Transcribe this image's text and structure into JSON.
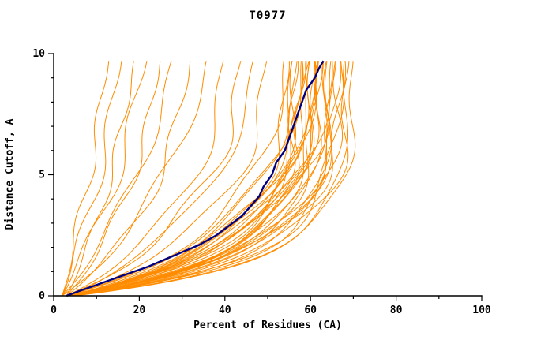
{
  "title": "T0977",
  "chart_data": {
    "type": "line",
    "title": "T0977",
    "xlabel": "Percent of Residues (CA)",
    "ylabel": "Distance Cutoff, A",
    "xlim": [
      0,
      100
    ],
    "ylim": [
      0,
      10
    ],
    "x_major_ticks": [
      0,
      20,
      40,
      60,
      80,
      100
    ],
    "x_minor_ticks": [
      10,
      30,
      50,
      70,
      90
    ],
    "y_major_ticks": [
      0,
      5,
      10
    ],
    "y_minor_ticks": [
      1,
      2,
      3,
      4,
      6,
      7,
      8,
      9
    ],
    "grid": false,
    "legend": "none",
    "background_color": "#ffffff",
    "axis_color": "#000000",
    "series": [
      {
        "name": "predicted-model-curves",
        "color": "#ff8c00",
        "count": 46,
        "cutoff_max": 9.7,
        "note": "Ensemble of model curves, percent of residues vs distance cutoff; each curve estimated as [start_percent, percent_at_10A, rise_rate, wiggle_amp, wiggle_phase, wiggle_freq]",
        "curves": [
          [
            2,
            13,
            0.05,
            1.2,
            0.5,
            1.4
          ],
          [
            2,
            16,
            0.08,
            1.5,
            2.0,
            1.2
          ],
          [
            3,
            19,
            0.12,
            1.0,
            1.0,
            1.6
          ],
          [
            2,
            22,
            0.1,
            1.8,
            2.6,
            1.1
          ],
          [
            3,
            25,
            0.18,
            1.2,
            0.2,
            1.5
          ],
          [
            2,
            28,
            0.14,
            1.6,
            1.3,
            1.0
          ],
          [
            3,
            32,
            0.22,
            1.4,
            2.2,
            1.3
          ],
          [
            2,
            36,
            0.18,
            1.8,
            0.7,
            0.9
          ],
          [
            3,
            40,
            0.28,
            2.0,
            1.9,
            1.0
          ],
          [
            3,
            44,
            0.3,
            2.2,
            0.4,
            1.2
          ],
          [
            4,
            47,
            0.26,
            1.8,
            2.8,
            0.8
          ],
          [
            3,
            50,
            0.34,
            2.0,
            1.5,
            1.1
          ],
          [
            3,
            54,
            0.36,
            2.0,
            0.3,
            1.0
          ],
          [
            4,
            55,
            0.45,
            1.5,
            1.2,
            1.3
          ],
          [
            3,
            56,
            0.5,
            2.5,
            2.1,
            0.9
          ],
          [
            4,
            56,
            0.38,
            1.8,
            0.6,
            1.1
          ],
          [
            3,
            57,
            0.55,
            2.2,
            1.8,
            1.2
          ],
          [
            4,
            57,
            0.42,
            1.2,
            2.5,
            1.0
          ],
          [
            5,
            58,
            0.6,
            1.6,
            0.9,
            1.4
          ],
          [
            3,
            58,
            0.35,
            2.4,
            1.6,
            0.8
          ],
          [
            4,
            58,
            0.48,
            1.4,
            2.9,
            1.2
          ],
          [
            3,
            59,
            0.52,
            2.0,
            0.2,
            1.0
          ],
          [
            5,
            59,
            0.4,
            1.7,
            1.4,
            1.3
          ],
          [
            4,
            60,
            0.58,
            2.3,
            2.3,
            0.9
          ],
          [
            3,
            60,
            0.44,
            1.3,
            0.8,
            1.1
          ],
          [
            5,
            60,
            0.36,
            2.6,
            1.9,
            1.0
          ],
          [
            4,
            61,
            0.62,
            1.5,
            2.7,
            1.2
          ],
          [
            3,
            61,
            0.46,
            2.1,
            0.5,
            0.9
          ],
          [
            5,
            61,
            0.54,
            1.2,
            1.7,
            1.4
          ],
          [
            4,
            62,
            0.4,
            2.4,
            2.0,
            1.0
          ],
          [
            3,
            62,
            0.65,
            1.6,
            1.1,
            1.1
          ],
          [
            5,
            62,
            0.5,
            1.9,
            0.0,
            1.2
          ],
          [
            4,
            63,
            0.57,
            2.2,
            2.4,
            0.8
          ],
          [
            3,
            63,
            0.43,
            1.4,
            1.0,
            1.3
          ],
          [
            5,
            64,
            0.68,
            1.8,
            1.6,
            1.0
          ],
          [
            4,
            64,
            0.47,
            2.5,
            0.4,
            1.1
          ],
          [
            3,
            65,
            0.6,
            1.3,
            2.2,
            1.2
          ],
          [
            5,
            65,
            0.38,
            2.0,
            1.2,
            0.9
          ],
          [
            4,
            66,
            0.55,
            1.7,
            2.8,
            1.0
          ],
          [
            3,
            66,
            0.7,
            2.3,
            0.6,
            1.1
          ],
          [
            5,
            67,
            0.48,
            1.5,
            1.8,
            1.3
          ],
          [
            4,
            67,
            0.63,
            2.1,
            0.1,
            0.9
          ],
          [
            3,
            68,
            0.52,
            1.8,
            2.5,
            1.2
          ],
          [
            5,
            68,
            0.72,
            1.4,
            1.3,
            1.0
          ],
          [
            4,
            69,
            0.58,
            2.2,
            2.0,
            1.1
          ],
          [
            5,
            70,
            0.66,
            1.6,
            0.7,
            1.2
          ]
        ]
      },
      {
        "name": "highlighted-model-curve",
        "color": "#000080",
        "points": [
          [
            3,
            0
          ],
          [
            6,
            0.2
          ],
          [
            10,
            0.45
          ],
          [
            14,
            0.7
          ],
          [
            18,
            0.95
          ],
          [
            22,
            1.2
          ],
          [
            26,
            1.5
          ],
          [
            30,
            1.8
          ],
          [
            34,
            2.1
          ],
          [
            38,
            2.5
          ],
          [
            41,
            2.9
          ],
          [
            44,
            3.3
          ],
          [
            46,
            3.7
          ],
          [
            48,
            4.1
          ],
          [
            49,
            4.5
          ],
          [
            51,
            5.0
          ],
          [
            52,
            5.5
          ],
          [
            54,
            6.0
          ],
          [
            55,
            6.5
          ],
          [
            56,
            7.0
          ],
          [
            57,
            7.5
          ],
          [
            58,
            8.0
          ],
          [
            59,
            8.5
          ],
          [
            61,
            9.0
          ],
          [
            62,
            9.4
          ],
          [
            63,
            9.7
          ]
        ]
      }
    ]
  }
}
